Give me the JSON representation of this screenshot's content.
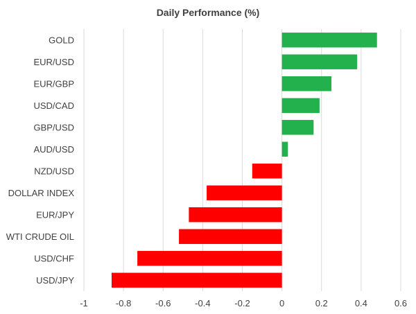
{
  "chart_data": {
    "type": "bar",
    "orientation": "horizontal",
    "title": "Daily Performance (%)",
    "xlabel": "",
    "ylabel": "",
    "xlim": [
      -1,
      0.6
    ],
    "xticks": [
      -1,
      -0.8,
      -0.6,
      -0.4,
      -0.2,
      0,
      0.2,
      0.4,
      0.6
    ],
    "xtick_labels": [
      "-1",
      "-0.8",
      "-0.6",
      "-0.4",
      "-0.2",
      "0",
      "0.2",
      "0.4",
      "0.6"
    ],
    "grid": "vertical",
    "categories": [
      "GOLD",
      "EUR/USD",
      "EUR/GBP",
      "USD/CAD",
      "GBP/USD",
      "AUD/USD",
      "NZD/USD",
      "DOLLAR INDEX",
      "EUR/JPY",
      "WTI CRUDE OIL",
      "USD/CHF",
      "USD/JPY"
    ],
    "values": [
      0.48,
      0.38,
      0.25,
      0.19,
      0.16,
      0.03,
      -0.15,
      -0.38,
      -0.47,
      -0.52,
      -0.73,
      -0.86
    ],
    "colors": {
      "positive": "#22b14c",
      "negative": "#ff0000",
      "grid": "#d9d9d9",
      "text": "#404040"
    }
  }
}
